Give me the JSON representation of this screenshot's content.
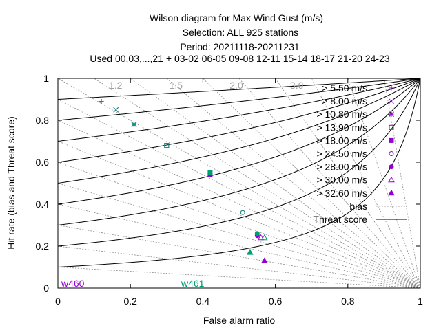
{
  "chart_data": {
    "type": "scatter",
    "title_lines": [
      "Wilson diagram  for Max Wind Gust (m/s)",
      "Selection: ALL     925 stations",
      "Period: 20211118-20211231",
      "Used  00,03,...,21  + 03-02 06-05 09-08 12-11 15-14 18-17 21-20 24-23"
    ],
    "xlabel": "False alarm ratio",
    "ylabel": "Hit rate (bias and Threat score)",
    "xlim": [
      0,
      1
    ],
    "ylim": [
      0,
      1
    ],
    "x_ticks": [
      "0",
      "0.2",
      "0.4",
      "0.6",
      "0.8",
      "1"
    ],
    "y_ticks": [
      "0",
      "0.2",
      "0.4",
      "0.6",
      "0.8",
      "1"
    ],
    "bias_lines": [
      1.2,
      1.5,
      2.0,
      3.0
    ],
    "bias_labels": [
      "1.2",
      "1.5",
      "2.0",
      "3.0"
    ],
    "threat_scores": [
      0.1,
      0.2,
      0.3,
      0.4,
      0.5,
      0.6,
      0.7,
      0.8,
      0.9
    ],
    "legend": {
      "position": "top-right",
      "thresholds": [
        {
          "label": "> 5.50 m/s",
          "marker": "plus"
        },
        {
          "label": "> 8.00 m/s",
          "marker": "cross"
        },
        {
          "label": "> 10.80 m/s",
          "marker": "star"
        },
        {
          "label": "> 13.90 m/s",
          "marker": "square-open"
        },
        {
          "label": "> 18.00 m/s",
          "marker": "square-filled"
        },
        {
          "label": "> 24.50 m/s",
          "marker": "circle-open"
        },
        {
          "label": "> 28.00 m/s",
          "marker": "circle-filled"
        },
        {
          "label": "> 30.00 m/s",
          "marker": "triangle-open"
        },
        {
          "label": "> 32.60 m/s",
          "marker": "triangle-filled"
        }
      ],
      "bias_label": "bias",
      "threat_label": "Threat score"
    },
    "series": [
      {
        "name": "w460",
        "color": "#9400d3",
        "points": [
          {
            "marker": "plus",
            "x": 0.12,
            "y": 0.89
          },
          {
            "marker": "cross",
            "x": 0.16,
            "y": 0.85
          },
          {
            "marker": "star",
            "x": 0.21,
            "y": 0.78
          },
          {
            "marker": "square-open",
            "x": 0.3,
            "y": 0.68
          },
          {
            "marker": "square-filled",
            "x": 0.42,
            "y": 0.54
          },
          {
            "marker": "circle-open",
            "x": 0.51,
            "y": 0.36
          },
          {
            "marker": "circle-filled",
            "x": 0.55,
            "y": 0.25
          },
          {
            "marker": "triangle-open",
            "x": 0.56,
            "y": 0.24
          },
          {
            "marker": "triangle-filled",
            "x": 0.57,
            "y": 0.13
          }
        ]
      },
      {
        "name": "w461",
        "color": "#009e73",
        "points": [
          {
            "marker": "plus",
            "x": 0.12,
            "y": 0.89
          },
          {
            "marker": "cross",
            "x": 0.16,
            "y": 0.85
          },
          {
            "marker": "star",
            "x": 0.21,
            "y": 0.78
          },
          {
            "marker": "square-open",
            "x": 0.3,
            "y": 0.68
          },
          {
            "marker": "square-filled",
            "x": 0.42,
            "y": 0.55
          },
          {
            "marker": "circle-open",
            "x": 0.51,
            "y": 0.36
          },
          {
            "marker": "circle-filled",
            "x": 0.55,
            "y": 0.26
          },
          {
            "marker": "triangle-open",
            "x": 0.57,
            "y": 0.24
          },
          {
            "marker": "triangle-filled",
            "x": 0.53,
            "y": 0.17
          }
        ]
      }
    ]
  }
}
